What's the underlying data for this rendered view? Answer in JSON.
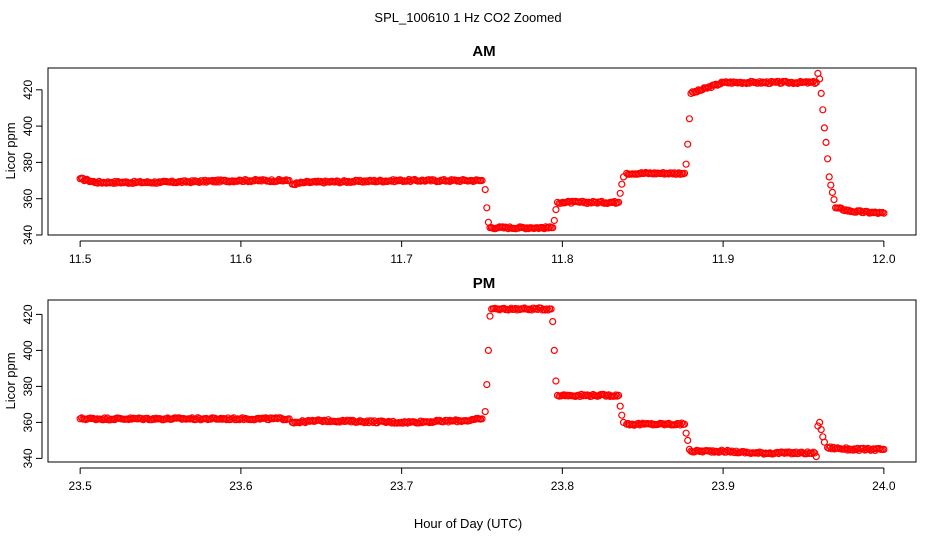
{
  "figure": {
    "title": "SPL_100610  1 Hz CO2 Zoomed",
    "xlabel": "Hour of Day (UTC)",
    "point_color": "#ff0000"
  },
  "chart_data": [
    {
      "type": "scatter",
      "title": "AM",
      "ylabel": "Licor ppm",
      "xlabel": "Hour of Day (UTC)",
      "xlim": [
        11.48,
        12.02
      ],
      "ylim": [
        340,
        432
      ],
      "xticks": [
        "11.5",
        "11.6",
        "11.7",
        "11.8",
        "11.9",
        "12.0"
      ],
      "yticks": [
        "340",
        "360",
        "380",
        "400",
        "420"
      ],
      "series": [
        {
          "x": [
            11.5,
            11.505,
            11.51,
            11.52,
            11.55,
            11.6,
            11.63,
            11.632,
            11.64,
            11.7,
            11.74,
            11.75,
            11.752,
            11.753,
            11.754,
            11.755,
            11.76,
            11.78,
            11.794,
            11.795,
            11.796,
            11.797,
            11.8,
            11.82,
            11.835,
            11.836,
            11.837,
            11.838,
            11.84,
            11.86,
            11.876,
            11.877,
            11.878,
            11.879,
            11.88,
            11.9,
            11.91,
            11.92,
            11.94,
            11.958,
            11.959,
            11.96,
            11.961,
            11.962,
            11.963,
            11.964,
            11.965,
            11.966,
            11.97,
            11.98,
            12.0
          ],
          "y": [
            371,
            370,
            369,
            369,
            369,
            370,
            370,
            368,
            369,
            370,
            370,
            370,
            365,
            355,
            347,
            344,
            344,
            344,
            344,
            348,
            354,
            358,
            358,
            358,
            358,
            363,
            368,
            372,
            374,
            374,
            374,
            379,
            390,
            404,
            418,
            424,
            424,
            424,
            424,
            424,
            429,
            426,
            418,
            409,
            399,
            391,
            382,
            372,
            355,
            353,
            352
          ]
        }
      ]
    },
    {
      "type": "scatter",
      "title": "PM",
      "ylabel": "Licor ppm",
      "xlabel": "Hour of Day (UTC)",
      "xlim": [
        23.48,
        24.02
      ],
      "ylim": [
        338,
        428
      ],
      "xticks": [
        "23.5",
        "23.6",
        "23.7",
        "23.8",
        "23.9",
        "24.0"
      ],
      "yticks": [
        "340",
        "360",
        "380",
        "400",
        "420"
      ],
      "series": [
        {
          "x": [
            23.5,
            23.55,
            23.6,
            23.63,
            23.632,
            23.65,
            23.7,
            23.74,
            23.75,
            23.752,
            23.753,
            23.754,
            23.755,
            23.756,
            23.76,
            23.78,
            23.793,
            23.794,
            23.795,
            23.796,
            23.797,
            23.8,
            23.82,
            23.835,
            23.836,
            23.837,
            23.838,
            23.84,
            23.86,
            23.876,
            23.877,
            23.878,
            23.879,
            23.88,
            23.9,
            23.92,
            23.94,
            23.957,
            23.958,
            23.959,
            23.96,
            23.961,
            23.962,
            23.963,
            23.965,
            23.98,
            24.0
          ],
          "y": [
            362,
            362,
            362,
            362,
            360,
            361,
            360,
            361,
            362,
            366,
            381,
            400,
            419,
            423,
            423,
            423,
            423,
            416,
            400,
            383,
            375,
            375,
            375,
            375,
            369,
            364,
            360,
            359,
            359,
            359,
            354,
            350,
            345,
            344,
            344,
            343,
            343,
            343,
            341,
            358,
            360,
            356,
            352,
            349,
            346,
            345,
            345
          ]
        }
      ]
    }
  ]
}
